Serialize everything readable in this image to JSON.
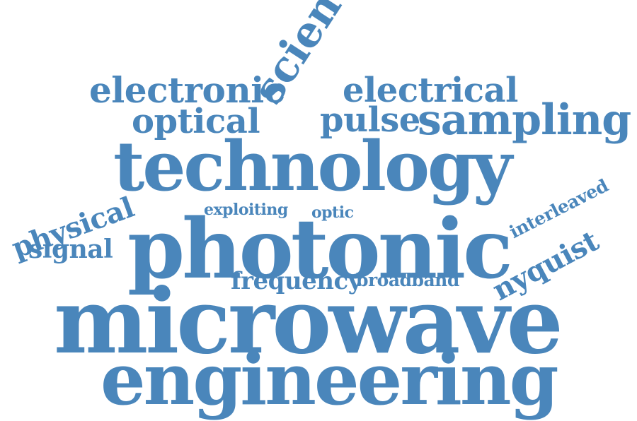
{
  "color": "#4a86bb",
  "words": {
    "microwave": "microwave",
    "engineering": "engineering",
    "photonic": "photonic",
    "technology": "technology",
    "sampling": "sampling",
    "electronic": "electronic",
    "electrical": "electrical",
    "optical": "optical",
    "pulse": "pulse",
    "science": "science",
    "physical": "physical",
    "signal": "signal",
    "exploiting": "exploiting",
    "optic": "optic",
    "frequency": "frequency",
    "broadband": "broadband",
    "interleaved": "interleaved",
    "nyquist": "nyquist"
  }
}
